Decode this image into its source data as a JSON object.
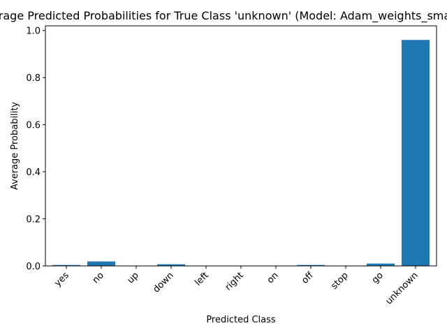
{
  "chart_data": {
    "type": "bar",
    "title": "Average Predicted Probabilities for True Class 'unknown' (Model: Adam_weights_small_v",
    "xlabel": "Predicted Class",
    "ylabel": "Average Probability",
    "categories": [
      "yes",
      "no",
      "up",
      "down",
      "left",
      "right",
      "on",
      "off",
      "stop",
      "go",
      "unknown"
    ],
    "values": [
      0.004,
      0.019,
      0.001,
      0.007,
      0.001,
      0.001,
      0.001,
      0.004,
      0.001,
      0.01,
      0.96
    ],
    "ylim": [
      0,
      1.02
    ],
    "yticks": [
      "0.0",
      "0.2",
      "0.4",
      "0.6",
      "0.8",
      "1.0"
    ],
    "bar_color": "#1f77b4",
    "grid": false,
    "legend": "none"
  }
}
